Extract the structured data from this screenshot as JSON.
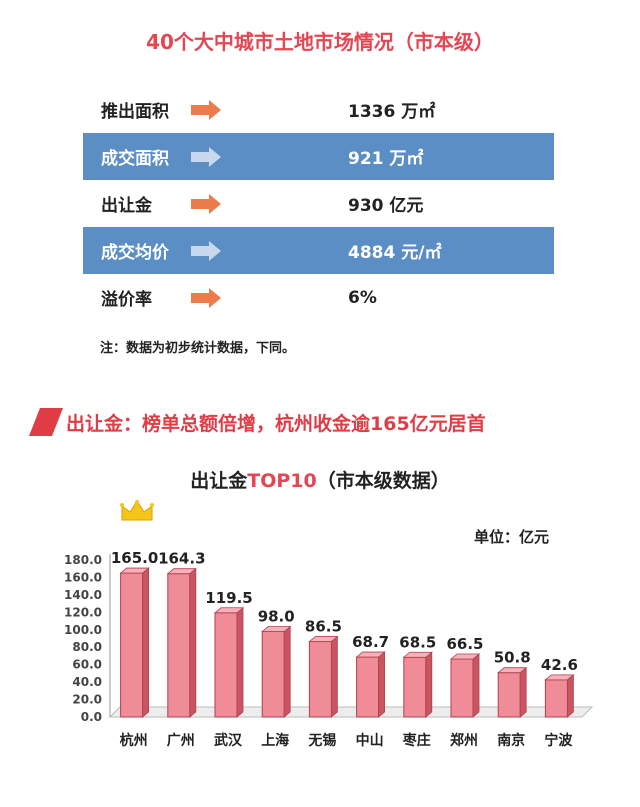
{
  "header": {
    "title": "40个大中城市土地市场情况（市本级）"
  },
  "stats": [
    {
      "label": "推出面积",
      "value": "1336 万㎡",
      "highlight": false
    },
    {
      "label": "成交面积",
      "value": "921 万㎡",
      "highlight": true
    },
    {
      "label": "出让金",
      "value": "930 亿元",
      "highlight": false
    },
    {
      "label": "成交均价",
      "value": "4884 元/㎡",
      "highlight": true
    },
    {
      "label": "溢价率",
      "value": "6%",
      "highlight": false
    }
  ],
  "note": "注：数据为初步统计数据，下同。",
  "banner": {
    "text": "出让金：榜单总额倍增，杭州收金逾165亿元居首"
  },
  "chart_title": {
    "part1": "出让金",
    "part2": "TOP10",
    "part3": "（市本级数据）"
  },
  "colors": {
    "title_red": "#e64552",
    "row_blue": "#5b8ec4",
    "bar": "#f08c98",
    "arrow_orange": "#ec7c4c"
  },
  "icons": {
    "arrow": "right-arrow-icon",
    "crown": "crown-icon",
    "banner": "parallelogram-icon"
  },
  "chart_data": {
    "type": "bar",
    "title": "出让金TOP10（市本级数据）",
    "unit_label": "单位：亿元",
    "categories": [
      "杭州",
      "广州",
      "武汉",
      "上海",
      "无锡",
      "中山",
      "枣庄",
      "郑州",
      "南京",
      "宁波"
    ],
    "values": [
      165.0,
      164.3,
      119.5,
      98.0,
      86.5,
      68.7,
      68.5,
      66.5,
      50.8,
      42.6
    ],
    "value_labels": [
      "165.0",
      "164.3",
      "119.5",
      "98.0",
      "86.5",
      "68.7",
      "68.5",
      "66.5",
      "50.8",
      "42.6"
    ],
    "ylim": [
      0,
      180
    ],
    "yticks": [
      "0.0",
      "20.0",
      "40.0",
      "60.0",
      "80.0",
      "100.0",
      "120.0",
      "140.0",
      "160.0",
      "180.0"
    ],
    "grid": false,
    "legend": "none"
  }
}
